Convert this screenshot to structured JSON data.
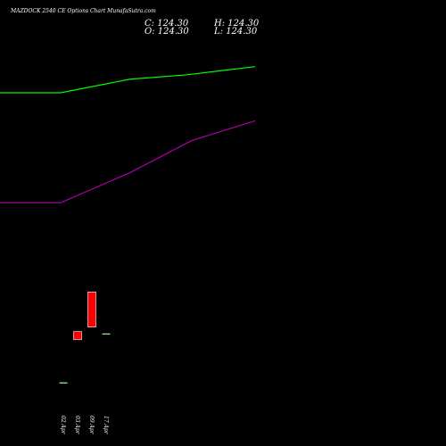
{
  "header": {
    "title": "MAZDOCK 2540  CE Options  Chart MunafaSutra.com",
    "close": "C: 124.30",
    "high": "H: 124.30",
    "open": "O: 124.30",
    "low": "L: 124.30"
  },
  "chart_data": {
    "type": "candlestick",
    "x_labels": [
      "02 Apr",
      "03 Apr",
      "09 Apr",
      "17 Apr"
    ],
    "candles": [
      {
        "label": "02 Apr",
        "open": 70,
        "high": 70,
        "low": 70,
        "close": 70,
        "color": "#90ee90"
      },
      {
        "label": "03 Apr",
        "open": 127,
        "high": 127,
        "low": 118,
        "close": 118,
        "color": "#ff0000"
      },
      {
        "label": "09 Apr",
        "open": 171,
        "high": 171,
        "low": 132,
        "close": 132,
        "color": "#ff0000"
      },
      {
        "label": "17 Apr",
        "open": 124.3,
        "high": 124.3,
        "low": 124.3,
        "close": 124.3,
        "color": "#90ee90"
      }
    ],
    "y_range": [
      0,
      495
    ],
    "lines": [
      {
        "color": "#00ff00",
        "points": [
          [
            0,
            392
          ],
          [
            68,
            392
          ],
          [
            145,
            407
          ],
          [
            210,
            412
          ],
          [
            286,
            421
          ]
        ]
      },
      {
        "color": "#aa00aa",
        "points": [
          [
            0,
            270
          ],
          [
            68,
            270
          ],
          [
            145,
            303
          ],
          [
            215,
            339
          ],
          [
            286,
            361
          ]
        ]
      }
    ]
  }
}
